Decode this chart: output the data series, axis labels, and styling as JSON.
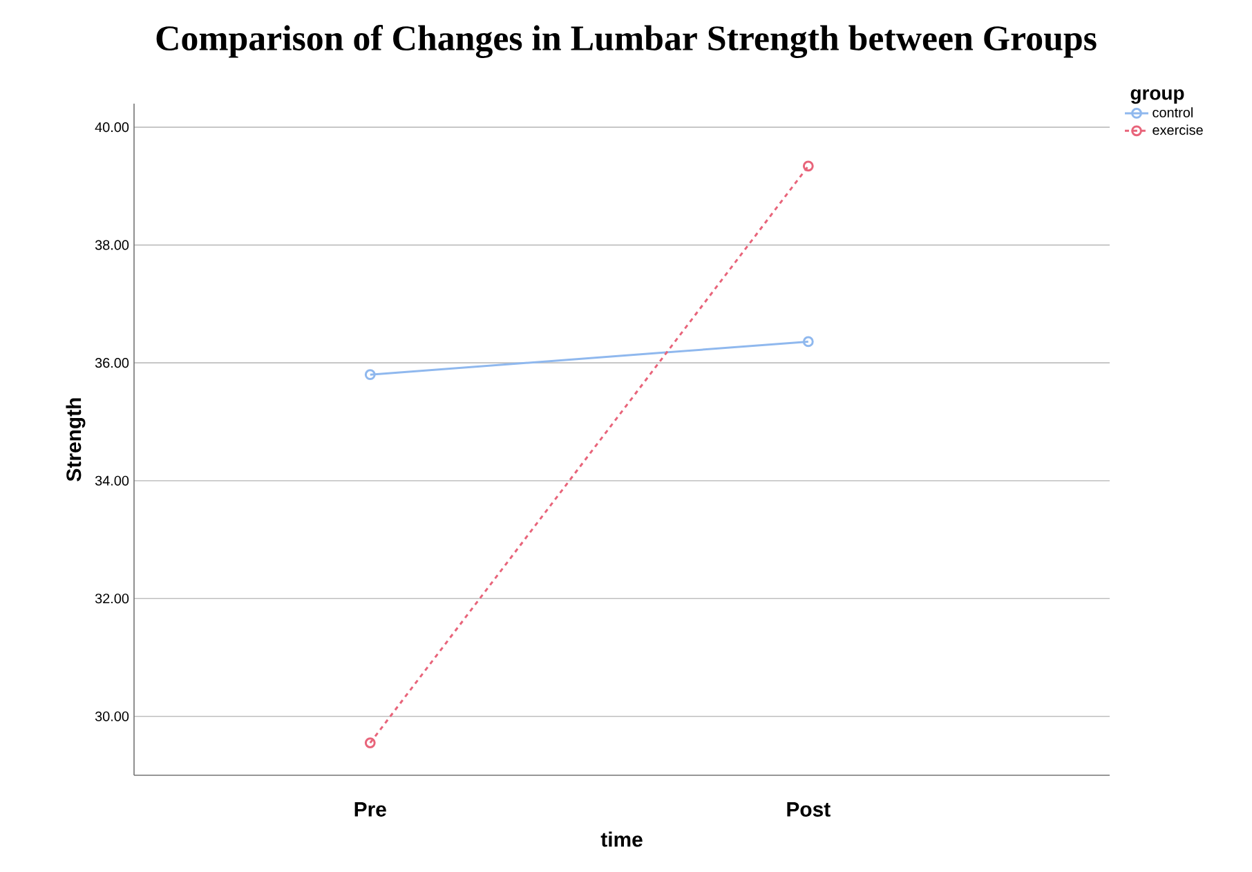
{
  "chart_data": {
    "type": "line",
    "title": "Comparison of Changes in Lumbar Strength between Groups",
    "xlabel": "time",
    "ylabel": "Strength",
    "legend_title": "group",
    "categories": [
      "Pre",
      "Post"
    ],
    "series": [
      {
        "name": "control",
        "color": "#8fb8ee",
        "values": [
          35.8,
          36.36
        ],
        "line_style": "solid"
      },
      {
        "name": "exercise",
        "color": "#e8647a",
        "values": [
          29.55,
          39.34
        ],
        "line_style": "dashed"
      }
    ],
    "ylim": [
      29.0,
      40.4
    ],
    "yticks": [
      {
        "value": 30,
        "label": "30.00"
      },
      {
        "value": 32,
        "label": "32.00"
      },
      {
        "value": 34,
        "label": "34.00"
      },
      {
        "value": 36,
        "label": "36.00"
      },
      {
        "value": 38,
        "label": "38.00"
      },
      {
        "value": 40,
        "label": "40.00"
      }
    ],
    "grid": "y",
    "legend": "top right",
    "marker": "circle"
  }
}
